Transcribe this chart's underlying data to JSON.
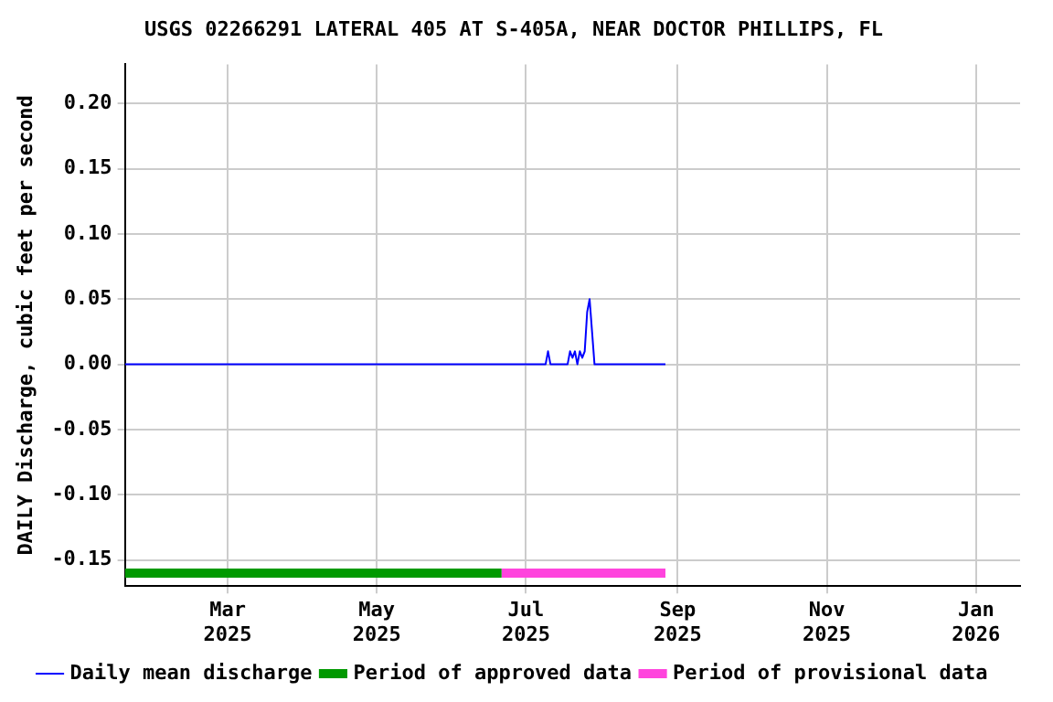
{
  "chart_data": {
    "type": "line",
    "title": "USGS 02266291 LATERAL 405 AT S-405A, NEAR DOCTOR PHILLIPS, FL",
    "ylabel": "DAILY Discharge, cubic feet per second",
    "xlim": [
      "2025-01-18",
      "2026-01-19"
    ],
    "xticks": [
      {
        "value": "2025-03-01",
        "label": "Mar 2025"
      },
      {
        "value": "2025-05-01",
        "label": "May 2025"
      },
      {
        "value": "2025-07-01",
        "label": "Jul 2025"
      },
      {
        "value": "2025-09-01",
        "label": "Sep 2025"
      },
      {
        "value": "2025-11-01",
        "label": "Nov 2025"
      },
      {
        "value": "2026-01-01",
        "label": "Jan 2026"
      }
    ],
    "ylim": [
      -0.17,
      0.23
    ],
    "yticks": [
      {
        "value": -0.15,
        "label": "-0.15"
      },
      {
        "value": -0.1,
        "label": "-0.10"
      },
      {
        "value": -0.05,
        "label": "-0.05"
      },
      {
        "value": 0,
        "label": "0.00"
      },
      {
        "value": 0.05,
        "label": "0.05"
      },
      {
        "value": 0.1,
        "label": "0.10"
      },
      {
        "value": 0.15,
        "label": "0.15"
      },
      {
        "value": 0.2,
        "label": "0.20"
      }
    ],
    "grid": true,
    "legend": "bottom",
    "marker": "none",
    "series": [
      {
        "name": "Daily mean discharge",
        "color": "#0000ff",
        "x": [
          "2025-01-18",
          "2025-07-09",
          "2025-07-10",
          "2025-07-11",
          "2025-07-18",
          "2025-07-19",
          "2025-07-20",
          "2025-07-21",
          "2025-07-22",
          "2025-07-23",
          "2025-07-24",
          "2025-07-25",
          "2025-07-26",
          "2025-07-27",
          "2025-07-28",
          "2025-07-29",
          "2025-08-27"
        ],
        "values": [
          0,
          0,
          0.01,
          0,
          0,
          0.01,
          0.005,
          0.01,
          0,
          0.01,
          0.005,
          0.01,
          0.04,
          0.05,
          0.025,
          0,
          0
        ]
      },
      {
        "name": "Period of approved data",
        "color": "#009900",
        "x": [
          "2025-01-18",
          "2025-06-21"
        ],
        "values": [
          -0.16,
          -0.16
        ]
      },
      {
        "name": "Period of provisional data",
        "color": "#ff44dd",
        "x": [
          "2025-06-21",
          "2025-08-27"
        ],
        "values": [
          -0.16,
          -0.16
        ]
      }
    ]
  }
}
